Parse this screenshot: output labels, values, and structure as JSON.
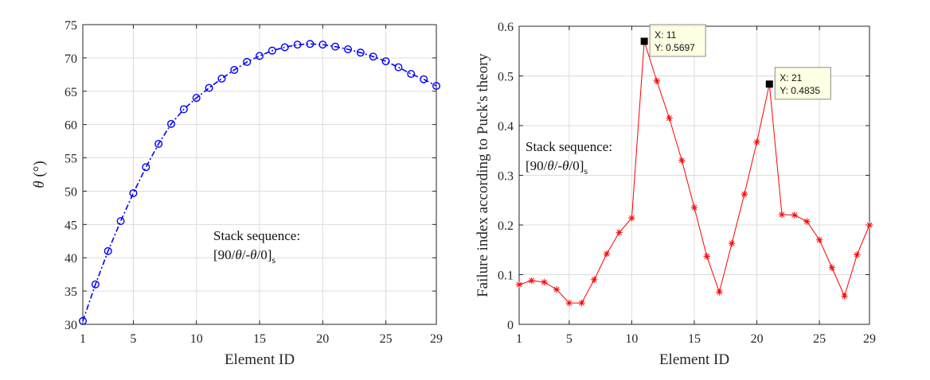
{
  "chart_data": [
    {
      "type": "line",
      "xlabel": "Element ID",
      "ylabel_symbol": "θ",
      "ylabel_unit": " (°)",
      "xlim": [
        1,
        29
      ],
      "ylim": [
        30,
        75
      ],
      "xticks": [
        1,
        5,
        10,
        15,
        20,
        25,
        29
      ],
      "yticks": [
        30,
        35,
        40,
        45,
        50,
        55,
        60,
        65,
        70,
        75
      ],
      "grid": true,
      "series": [
        {
          "name": "theta",
          "color": "#0000ff",
          "line_style": "dash-dot",
          "marker": "circle",
          "x": [
            1,
            2,
            3,
            4,
            5,
            6,
            7,
            8,
            9,
            10,
            11,
            12,
            13,
            14,
            15,
            16,
            17,
            18,
            19,
            20,
            21,
            22,
            23,
            24,
            25,
            26,
            27,
            28,
            29
          ],
          "values": [
            30.5,
            36.0,
            41.0,
            45.5,
            49.7,
            53.6,
            57.1,
            60.1,
            62.3,
            64.0,
            65.5,
            66.9,
            68.2,
            69.4,
            70.3,
            71.1,
            71.6,
            72.0,
            72.1,
            72.0,
            71.7,
            71.3,
            70.8,
            70.2,
            69.5,
            68.6,
            67.6,
            66.8,
            65.8
          ]
        }
      ],
      "annotation": {
        "line1": "Stack sequence:",
        "line2_prefix": "[90/",
        "line2_theta": "θ",
        "line2_mid": "/-",
        "line2_theta2": "θ",
        "line2_suffix": "/0]",
        "line2_sub": "s"
      }
    },
    {
      "type": "line",
      "xlabel": "Element ID",
      "ylabel": "Failure index according to Puck's theory",
      "xlim": [
        1,
        29
      ],
      "ylim": [
        0,
        0.6
      ],
      "xticks": [
        1,
        5,
        10,
        15,
        20,
        25,
        29
      ],
      "yticks": [
        0,
        0.1,
        0.2,
        0.3,
        0.4,
        0.5,
        0.6
      ],
      "grid": true,
      "series": [
        {
          "name": "failure_index",
          "color": "#ff0000",
          "line_style": "solid",
          "marker": "asterisk",
          "x": [
            1,
            2,
            3,
            4,
            5,
            6,
            7,
            8,
            9,
            10,
            11,
            12,
            13,
            14,
            15,
            16,
            17,
            18,
            19,
            20,
            21,
            22,
            23,
            24,
            25,
            26,
            27,
            28,
            29
          ],
          "values": [
            0.08,
            0.088,
            0.085,
            0.07,
            0.043,
            0.043,
            0.09,
            0.142,
            0.185,
            0.214,
            0.5697,
            0.49,
            0.415,
            0.33,
            0.235,
            0.137,
            0.065,
            0.163,
            0.262,
            0.367,
            0.4835,
            0.221,
            0.22,
            0.207,
            0.17,
            0.114,
            0.057,
            0.14,
            0.2
          ]
        }
      ],
      "datatips": [
        {
          "x": 11,
          "y": 0.5697,
          "x_text": "X: 11",
          "y_text": "Y: 0.5697"
        },
        {
          "x": 21,
          "y": 0.4835,
          "x_text": "X: 21",
          "y_text": "Y: 0.4835"
        }
      ],
      "annotation": {
        "line1": "Stack sequence:",
        "line2_prefix": "[90/",
        "line2_theta": "θ",
        "line2_mid": "/-",
        "line2_theta2": "θ",
        "line2_suffix": "/0]",
        "line2_sub": "s"
      }
    }
  ]
}
